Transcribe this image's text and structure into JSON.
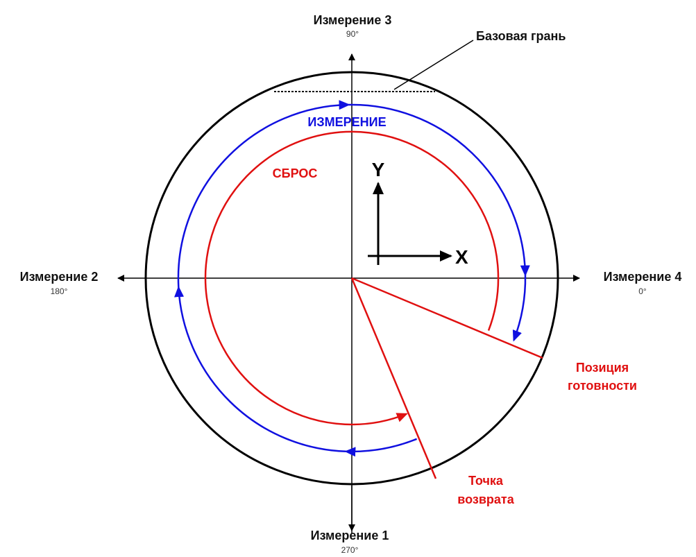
{
  "axis_top": {
    "label": "Измерение 3",
    "angle": "90°"
  },
  "axis_left": {
    "label": "Измерение 2",
    "angle": "180°"
  },
  "axis_right": {
    "label": "Измерение 4",
    "angle": "0°"
  },
  "axis_bottom": {
    "label": "Измерение 1",
    "angle": "270°"
  },
  "base_face": "Базовая грань",
  "measure_label": "ИЗМЕРЕНИЕ",
  "reset_label": "СБРОС",
  "y_label": "Y",
  "x_label": "X",
  "ready_position": [
    "Позиция",
    "готовности"
  ],
  "return_point": [
    "Точка",
    "возврата"
  ]
}
